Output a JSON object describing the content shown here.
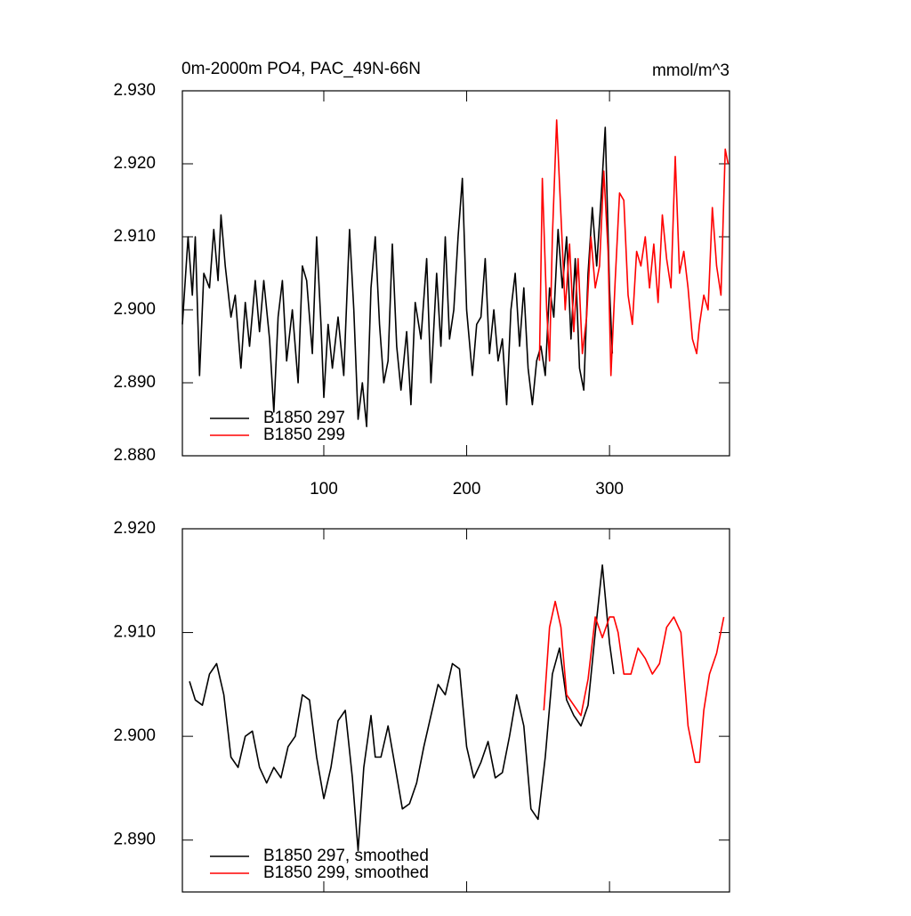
{
  "chart_data": [
    {
      "type": "line",
      "title": "0m-2000m PO4, PAC_49N-66N",
      "units": "mmol/m^3",
      "xlim": [
        1,
        384
      ],
      "xticks": [
        100,
        200,
        300
      ],
      "ylim": [
        2.88,
        2.93
      ],
      "yticks": [
        {
          "value": 2.88,
          "label": "2.880"
        },
        {
          "value": 2.89,
          "label": "2.890"
        },
        {
          "value": 2.9,
          "label": "2.900"
        },
        {
          "value": 2.91,
          "label": "2.910"
        },
        {
          "value": 2.92,
          "label": "2.920"
        },
        {
          "value": 2.93,
          "label": "2.930"
        }
      ],
      "series": [
        {
          "name": "B1850 297",
          "color": "#000000",
          "x": [
            1,
            5,
            8,
            10,
            13,
            16,
            20,
            23,
            26,
            28,
            31,
            35,
            38,
            42,
            45,
            48,
            52,
            55,
            58,
            62,
            65,
            68,
            71,
            74,
            78,
            82,
            85,
            88,
            92,
            95,
            98,
            100,
            103,
            106,
            110,
            114,
            118,
            121,
            124,
            127,
            130,
            133,
            136,
            139,
            142,
            145,
            148,
            151,
            154,
            158,
            161,
            164,
            168,
            172,
            175,
            179,
            182,
            185,
            188,
            191,
            194,
            197,
            200,
            204,
            207,
            210,
            213,
            216,
            219,
            222,
            225,
            228,
            231,
            234,
            237,
            240,
            243,
            246,
            249,
            252,
            255,
            258,
            261,
            264,
            267,
            270,
            273,
            276,
            279,
            282,
            285,
            288,
            291,
            294,
            297,
            300,
            302
          ],
          "values": [
            2.898,
            2.91,
            2.902,
            2.91,
            2.891,
            2.905,
            2.903,
            2.911,
            2.904,
            2.913,
            2.906,
            2.899,
            2.902,
            2.892,
            2.901,
            2.895,
            2.904,
            2.897,
            2.904,
            2.896,
            2.886,
            2.899,
            2.904,
            2.893,
            2.9,
            2.89,
            2.906,
            2.904,
            2.894,
            2.91,
            2.898,
            2.888,
            2.898,
            2.892,
            2.899,
            2.891,
            2.911,
            2.9,
            2.885,
            2.89,
            2.884,
            2.903,
            2.91,
            2.898,
            2.89,
            2.893,
            2.909,
            2.895,
            2.889,
            2.897,
            2.887,
            2.901,
            2.896,
            2.907,
            2.89,
            2.905,
            2.895,
            2.91,
            2.896,
            2.9,
            2.91,
            2.918,
            2.9,
            2.891,
            2.898,
            2.899,
            2.907,
            2.894,
            2.9,
            2.893,
            2.896,
            2.887,
            2.9,
            2.905,
            2.895,
            2.903,
            2.892,
            2.887,
            2.893,
            2.895,
            2.891,
            2.903,
            2.899,
            2.911,
            2.903,
            2.91,
            2.896,
            2.907,
            2.892,
            2.889,
            2.905,
            2.914,
            2.906,
            2.915,
            2.925,
            2.903,
            2.894
          ]
        },
        {
          "name": "B1850 299",
          "color": "#ff0000",
          "x": [
            251,
            253,
            256,
            258,
            260,
            263,
            266,
            269,
            272,
            275,
            278,
            281,
            284,
            287,
            290,
            293,
            296,
            299,
            301,
            304,
            307,
            310,
            313,
            316,
            319,
            322,
            325,
            328,
            331,
            334,
            337,
            340,
            343,
            346,
            349,
            352,
            355,
            358,
            361,
            363,
            366,
            369,
            372,
            375,
            378,
            381,
            383
          ],
          "values": [
            2.893,
            2.918,
            2.9,
            2.893,
            2.91,
            2.926,
            2.913,
            2.9,
            2.909,
            2.897,
            2.907,
            2.894,
            2.899,
            2.91,
            2.903,
            2.906,
            2.919,
            2.908,
            2.891,
            2.904,
            2.916,
            2.915,
            2.902,
            2.898,
            2.908,
            2.906,
            2.91,
            2.903,
            2.909,
            2.901,
            2.913,
            2.907,
            2.903,
            2.921,
            2.905,
            2.908,
            2.903,
            2.896,
            2.894,
            2.898,
            2.902,
            2.9,
            2.914,
            2.906,
            2.902,
            2.922,
            2.92
          ]
        }
      ]
    },
    {
      "type": "line",
      "xlim": [
        1,
        384
      ],
      "xticks": [
        100,
        200,
        300
      ],
      "ylim": [
        2.885,
        2.92
      ],
      "yticks": [
        {
          "value": 2.89,
          "label": "2.890"
        },
        {
          "value": 2.9,
          "label": "2.900"
        },
        {
          "value": 2.91,
          "label": "2.910"
        },
        {
          "value": 2.92,
          "label": "2.920"
        }
      ],
      "series": [
        {
          "name": "B1850 297, smoothed",
          "color": "#000000",
          "x": [
            6,
            10,
            15,
            20,
            25,
            30,
            35,
            40,
            45,
            50,
            55,
            60,
            65,
            70,
            75,
            80,
            85,
            90,
            95,
            100,
            105,
            110,
            115,
            120,
            124,
            128,
            133,
            136,
            140,
            145,
            150,
            155,
            160,
            165,
            170,
            175,
            180,
            185,
            190,
            195,
            200,
            205,
            210,
            215,
            220,
            225,
            230,
            235,
            240,
            245,
            250,
            255,
            260,
            265,
            270,
            275,
            280,
            285,
            290,
            295,
            300,
            303
          ],
          "values": [
            2.9053,
            2.9035,
            2.903,
            2.906,
            2.907,
            2.904,
            2.898,
            2.897,
            2.9,
            2.9005,
            2.897,
            2.8955,
            2.897,
            2.896,
            2.899,
            2.9,
            2.904,
            2.9035,
            2.898,
            2.894,
            2.897,
            2.9015,
            2.9025,
            2.896,
            2.889,
            2.897,
            2.902,
            2.898,
            2.898,
            2.901,
            2.897,
            2.893,
            2.8935,
            2.8955,
            2.899,
            2.902,
            2.905,
            2.904,
            2.907,
            2.9065,
            2.899,
            2.896,
            2.8975,
            2.8995,
            2.896,
            2.8965,
            2.9,
            2.904,
            2.901,
            2.893,
            2.892,
            2.898,
            2.906,
            2.9085,
            2.9035,
            2.902,
            2.901,
            2.903,
            2.91,
            2.9165,
            2.909,
            2.906
          ]
        },
        {
          "name": "B1850 299, smoothed",
          "color": "#ff0000",
          "x": [
            254,
            258,
            262,
            266,
            270,
            275,
            280,
            285,
            290,
            295,
            300,
            303,
            306,
            310,
            315,
            320,
            325,
            330,
            335,
            340,
            345,
            350,
            355,
            360,
            363,
            366,
            370,
            375,
            380
          ],
          "values": [
            2.9025,
            2.9105,
            2.913,
            2.9105,
            2.904,
            2.903,
            2.902,
            2.9055,
            2.9115,
            2.9095,
            2.9115,
            2.9115,
            2.91,
            2.906,
            2.906,
            2.9085,
            2.9075,
            2.906,
            2.907,
            2.9105,
            2.9115,
            2.91,
            2.901,
            2.8975,
            2.8975,
            2.9025,
            2.906,
            2.908,
            2.9115
          ]
        }
      ]
    }
  ]
}
